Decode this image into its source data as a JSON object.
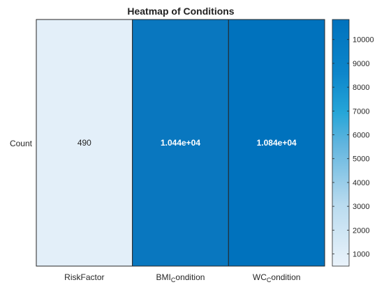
{
  "chart_data": {
    "type": "heatmap",
    "title": "Heatmap of Conditions",
    "x_labels": [
      {
        "main": "RiskFactor",
        "sub": ""
      },
      {
        "main": "BMI",
        "sub": "C",
        "rest": "ondition"
      },
      {
        "main": "WC",
        "sub": "C",
        "rest": "ondition"
      }
    ],
    "y_labels": [
      "Count"
    ],
    "values": [
      [
        490,
        10440,
        10840
      ]
    ],
    "cell_labels": [
      [
        "490",
        "1.044e+04",
        "1.084e+04"
      ]
    ],
    "color_range": [
      490,
      10840
    ],
    "colormap": {
      "low": "#e3eff9",
      "high": "#0072bd"
    },
    "colorbar_ticks": [
      1000,
      2000,
      3000,
      4000,
      5000,
      6000,
      7000,
      8000,
      9000,
      10000
    ],
    "colorbar_tick_labels": [
      "1000",
      "2000",
      "3000",
      "4000",
      "5000",
      "6000",
      "7000",
      "8000",
      "9000",
      "10000"
    ]
  }
}
